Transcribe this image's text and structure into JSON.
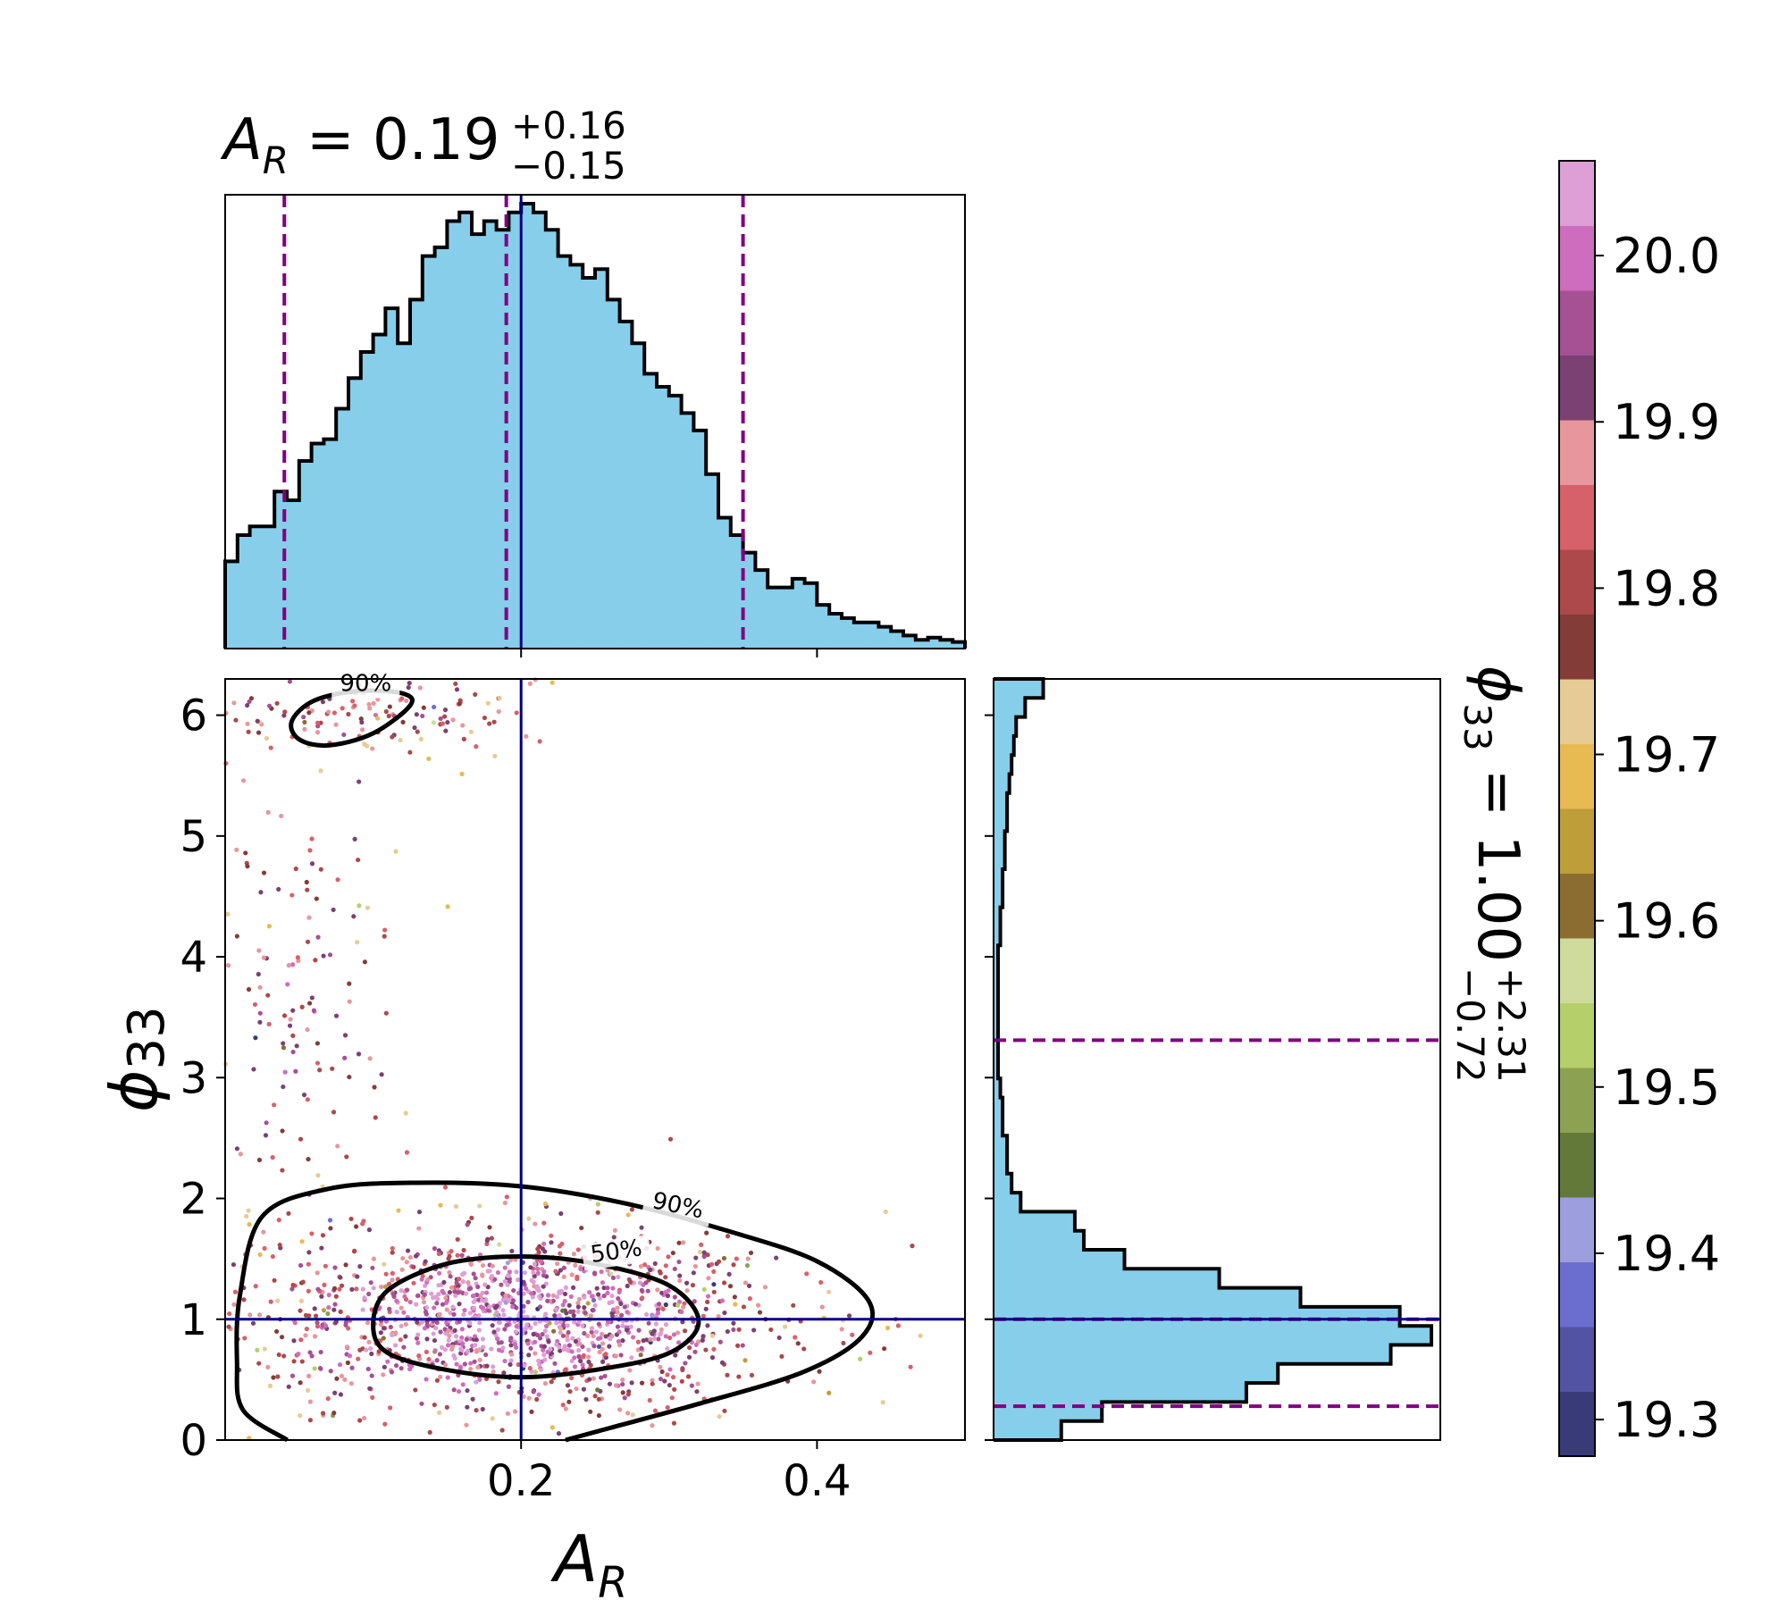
{
  "chart_data": [
    {
      "type": "histogram",
      "panel": "marginal-x",
      "title": {
        "symbol": "A",
        "sub": "R",
        "value": "= 0.19",
        "sup": "+0.16",
        "low": "−0.15"
      },
      "x_range": [
        0.0,
        0.5
      ],
      "x_ticks": [
        0.2,
        0.4
      ],
      "fill_color": "#87ceeb",
      "bin_heights": [
        0.2,
        0.26,
        0.28,
        0.28,
        0.36,
        0.34,
        0.43,
        0.47,
        0.48,
        0.55,
        0.62,
        0.68,
        0.72,
        0.78,
        0.7,
        0.8,
        0.9,
        0.92,
        0.98,
        1.0,
        0.95,
        0.98,
        0.96,
        1.0,
        1.02,
        1.0,
        0.96,
        0.9,
        0.88,
        0.85,
        0.87,
        0.8,
        0.75,
        0.7,
        0.63,
        0.6,
        0.58,
        0.54,
        0.5,
        0.4,
        0.3,
        0.26,
        0.22,
        0.18,
        0.14,
        0.14,
        0.16,
        0.15,
        0.1,
        0.08,
        0.07,
        0.06,
        0.06,
        0.05,
        0.04,
        0.03,
        0.02,
        0.025,
        0.02,
        0.015
      ],
      "quantiles": [
        0.04,
        0.19,
        0.35
      ],
      "truth": 0.2
    },
    {
      "type": "scatter",
      "panel": "joint",
      "xlabel": {
        "symbol": "A",
        "sub": "R"
      },
      "ylabel": {
        "symbol": "ϕ",
        "sub": "33"
      },
      "x_range": [
        0.0,
        0.5
      ],
      "y_range": [
        0.0,
        6.3
      ],
      "x_ticks": [
        0.2,
        0.4
      ],
      "y_ticks": [
        0,
        1,
        2,
        3,
        4,
        5,
        6
      ],
      "truth": {
        "x": 0.2,
        "y": 1.0
      },
      "clusters": [
        {
          "name": "main",
          "center_x": 0.2,
          "center_y": 1.0,
          "spread_x": 0.085,
          "spread_y": 0.38,
          "count": 1400
        },
        {
          "name": "wrap-top",
          "center_x": 0.09,
          "center_y": 6.05,
          "spread_x": 0.06,
          "spread_y": 0.2,
          "count": 140
        },
        {
          "name": "tail",
          "center_x": 0.05,
          "center_y": 3.5,
          "spread_x": 0.035,
          "spread_y": 1.5,
          "count": 170
        }
      ],
      "contours": [
        {
          "level": "50%",
          "label": "50%",
          "points": [
            [
              0.1,
              0.95
            ],
            [
              0.11,
              0.72
            ],
            [
              0.15,
              0.58
            ],
            [
              0.2,
              0.52
            ],
            [
              0.25,
              0.58
            ],
            [
              0.3,
              0.72
            ],
            [
              0.32,
              0.98
            ],
            [
              0.3,
              1.28
            ],
            [
              0.25,
              1.46
            ],
            [
              0.2,
              1.52
            ],
            [
              0.15,
              1.46
            ],
            [
              0.11,
              1.24
            ]
          ]
        },
        {
          "level": "90%",
          "label": "90%",
          "points": [
            [
              0.042,
              0.0
            ],
            [
              0.012,
              0.25
            ],
            [
              0.008,
              0.65
            ],
            [
              0.01,
              1.2
            ],
            [
              0.025,
              1.85
            ],
            [
              0.07,
              2.08
            ],
            [
              0.13,
              2.13
            ],
            [
              0.2,
              2.1
            ],
            [
              0.27,
              1.96
            ],
            [
              0.34,
              1.73
            ],
            [
              0.4,
              1.48
            ],
            [
              0.435,
              1.15
            ],
            [
              0.43,
              0.85
            ],
            [
              0.39,
              0.56
            ],
            [
              0.32,
              0.3
            ],
            [
              0.26,
              0.1
            ],
            [
              0.23,
              0.0
            ]
          ]
        },
        {
          "level": "90%",
          "label": "90%",
          "points": [
            [
              0.045,
              5.95
            ],
            [
              0.06,
              6.12
            ],
            [
              0.09,
              6.2
            ],
            [
              0.12,
              6.18
            ],
            [
              0.125,
              6.08
            ],
            [
              0.1,
              5.85
            ],
            [
              0.07,
              5.75
            ],
            [
              0.05,
              5.8
            ]
          ]
        }
      ]
    },
    {
      "type": "histogram",
      "panel": "marginal-y",
      "orientation": "horizontal",
      "title": {
        "symbol": "ϕ",
        "sub": "33",
        "value": "= 1.00",
        "sup": "+2.31",
        "low": "−0.72"
      },
      "y_range": [
        0.0,
        6.3
      ],
      "fill_color": "#87ceeb",
      "bin_heights": [
        0.15,
        0.24,
        0.56,
        0.63,
        0.88,
        0.97,
        0.9,
        0.68,
        0.5,
        0.29,
        0.2,
        0.18,
        0.06,
        0.04,
        0.03,
        0.03,
        0.02,
        0.02,
        0.015,
        0.01,
        0.01,
        0.01,
        0.01,
        0.01,
        0.01,
        0.01,
        0.015,
        0.015,
        0.02,
        0.02,
        0.025,
        0.025,
        0.03,
        0.03,
        0.035,
        0.04,
        0.045,
        0.05,
        0.07,
        0.11
      ],
      "quantiles": [
        0.28,
        1.0,
        3.31
      ],
      "truth": 1.0
    }
  ],
  "colorbar": {
    "colors": [
      "#393b79",
      "#5254a3",
      "#6b6ecf",
      "#9c9ede",
      "#637939",
      "#8ca252",
      "#b5cf6b",
      "#cedb9c",
      "#8c6d31",
      "#bd9e39",
      "#e7ba52",
      "#e7cb94",
      "#843c39",
      "#ad494a",
      "#d6616b",
      "#e7969c",
      "#7b4173",
      "#a55194",
      "#ce6dbd",
      "#de9ed6"
    ],
    "range": [
      19.278,
      20.057
    ],
    "ticks": [
      "19.3",
      "19.4",
      "19.5",
      "19.6",
      "19.7",
      "19.8",
      "19.9",
      "20.0"
    ]
  },
  "colors": {
    "histogram_fill": "#87ceeb",
    "truth_line": "#000080",
    "quantile_line": "#800080"
  }
}
